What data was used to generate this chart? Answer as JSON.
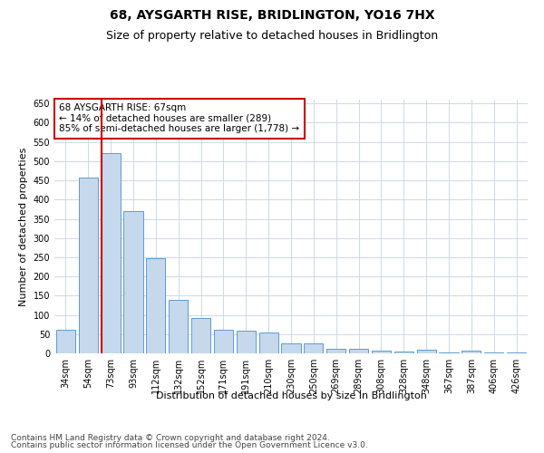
{
  "title": "68, AYSGARTH RISE, BRIDLINGTON, YO16 7HX",
  "subtitle": "Size of property relative to detached houses in Bridlington",
  "xlabel": "Distribution of detached houses by size in Bridlington",
  "ylabel": "Number of detached properties",
  "categories": [
    "34sqm",
    "54sqm",
    "73sqm",
    "93sqm",
    "112sqm",
    "132sqm",
    "152sqm",
    "171sqm",
    "191sqm",
    "210sqm",
    "230sqm",
    "250sqm",
    "269sqm",
    "289sqm",
    "308sqm",
    "328sqm",
    "348sqm",
    "367sqm",
    "387sqm",
    "406sqm",
    "426sqm"
  ],
  "values": [
    62,
    458,
    520,
    370,
    248,
    138,
    92,
    62,
    58,
    55,
    27,
    27,
    11,
    12,
    7,
    5,
    9,
    3,
    6,
    3,
    3
  ],
  "bar_color": "#c5d8ec",
  "bar_edge_color": "#5b9bd5",
  "vline_x_index": 2,
  "vline_color": "#cc0000",
  "annotation_text": "68 AYSGARTH RISE: 67sqm\n← 14% of detached houses are smaller (289)\n85% of semi-detached houses are larger (1,778) →",
  "annotation_box_color": "#ffffff",
  "annotation_box_edge_color": "#cc0000",
  "ylim": [
    0,
    660
  ],
  "yticks": [
    0,
    50,
    100,
    150,
    200,
    250,
    300,
    350,
    400,
    450,
    500,
    550,
    600,
    650
  ],
  "footer1": "Contains HM Land Registry data © Crown copyright and database right 2024.",
  "footer2": "Contains public sector information licensed under the Open Government Licence v3.0.",
  "bg_color": "#ffffff",
  "grid_color": "#ccd9e8",
  "title_fontsize": 10,
  "subtitle_fontsize": 9,
  "axis_label_fontsize": 8,
  "tick_fontsize": 7,
  "annotation_fontsize": 7.5,
  "footer_fontsize": 6.5
}
